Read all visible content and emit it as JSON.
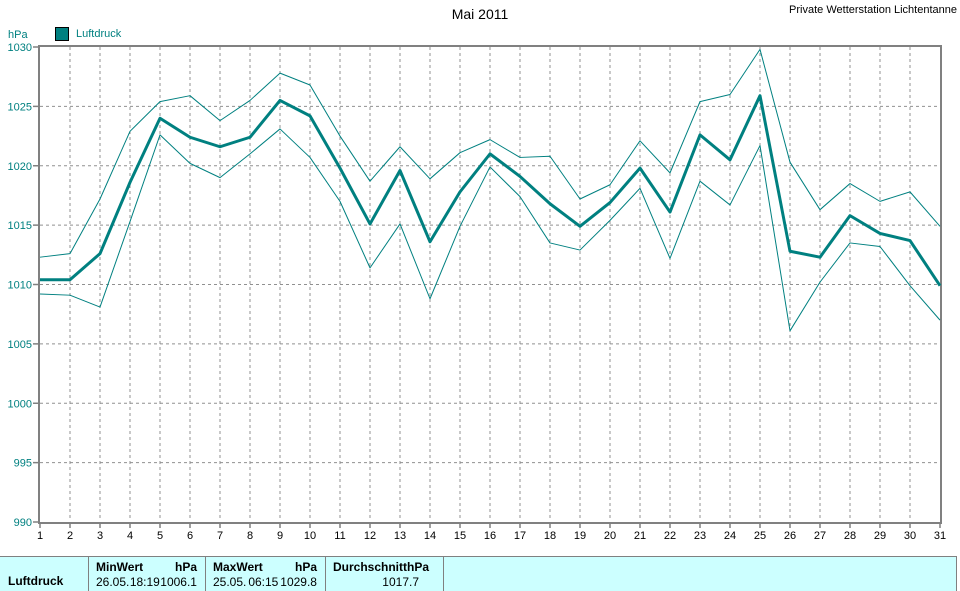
{
  "header": {
    "title": "Mai 2011",
    "station": "Private Wetterstation Lichtentanne"
  },
  "chart_data": {
    "type": "line",
    "title": "Mai 2011",
    "ylabel": "hPa",
    "ylim": [
      990,
      1030
    ],
    "ytick_step": 5,
    "xlim": [
      1,
      31
    ],
    "grid": "dashed",
    "legend": [
      {
        "label": "Luftdruck",
        "color": "#008080"
      }
    ],
    "x": [
      1,
      2,
      3,
      4,
      5,
      6,
      7,
      8,
      9,
      10,
      11,
      12,
      13,
      14,
      15,
      16,
      17,
      18,
      19,
      20,
      21,
      22,
      23,
      24,
      25,
      26,
      27,
      28,
      29,
      30,
      31
    ],
    "series": [
      {
        "name": "MaxWert",
        "values": [
          1012.3,
          1012.6,
          1017.2,
          1022.9,
          1025.4,
          1025.9,
          1023.8,
          1025.5,
          1027.8,
          1026.8,
          1022.5,
          1018.7,
          1021.6,
          1018.9,
          1021.1,
          1022.2,
          1020.7,
          1020.8,
          1017.2,
          1018.4,
          1022.1,
          1019.4,
          1025.4,
          1026.0,
          1029.8,
          1020.3,
          1016.3,
          1018.5,
          1017.0,
          1017.8,
          1014.9
        ]
      },
      {
        "name": "Durchschnitt",
        "values": [
          1010.4,
          1010.4,
          1012.6,
          1018.6,
          1024.0,
          1022.4,
          1021.6,
          1022.4,
          1025.5,
          1024.2,
          1019.8,
          1015.1,
          1019.6,
          1013.6,
          1017.8,
          1021.0,
          1019.1,
          1016.8,
          1014.9,
          1016.9,
          1019.8,
          1016.1,
          1022.6,
          1020.5,
          1025.9,
          1012.8,
          1012.3,
          1015.8,
          1014.3,
          1013.7,
          1009.9
        ]
      },
      {
        "name": "MinWert",
        "values": [
          1009.2,
          1009.1,
          1008.1,
          1015.3,
          1022.6,
          1020.2,
          1019.0,
          1021.0,
          1023.1,
          1020.7,
          1017.0,
          1011.4,
          1015.1,
          1008.8,
          1014.9,
          1019.9,
          1017.4,
          1013.5,
          1012.9,
          1015.4,
          1018.1,
          1012.2,
          1018.7,
          1016.7,
          1021.7,
          1006.1,
          1010.2,
          1013.5,
          1013.2,
          1009.9,
          1007.0
        ]
      }
    ]
  },
  "table": {
    "row_label": "Luftdruck",
    "columns": [
      {
        "header": [
          "MinWert",
          "hPa"
        ],
        "value": [
          "26.05.",
          "18:19",
          "1006.1"
        ]
      },
      {
        "header": [
          "MaxWert",
          "hPa"
        ],
        "value": [
          "25.05.",
          "06:15",
          "1029.8"
        ]
      },
      {
        "header": [
          "Durchschnitt",
          "hPa"
        ],
        "value": [
          "",
          "",
          "1017.7"
        ]
      }
    ]
  },
  "colors": {
    "accent": "#008080",
    "axis": "#808080",
    "grid": "#909090",
    "table_bg": "#ccffff",
    "text": "#000000"
  }
}
